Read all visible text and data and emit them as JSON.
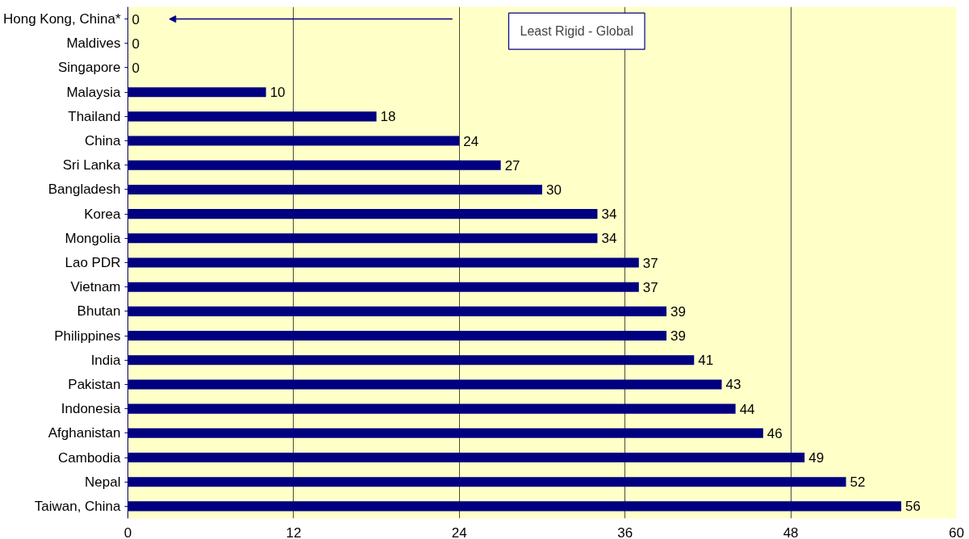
{
  "chart_data": {
    "type": "bar",
    "orientation": "horizontal",
    "categories": [
      "Hong Kong, China*",
      "Maldives",
      "Singapore",
      "Malaysia",
      "Thailand",
      "China",
      "Sri Lanka",
      "Bangladesh",
      "Korea",
      "Mongolia",
      "Lao PDR",
      "Vietnam",
      "Bhutan",
      "Philippines",
      "India",
      "Pakistan",
      "Indonesia",
      "Afghanistan",
      "Cambodia",
      "Nepal",
      "Taiwan, China"
    ],
    "values": [
      0,
      0,
      0,
      10,
      18,
      24,
      27,
      30,
      34,
      34,
      37,
      37,
      39,
      39,
      41,
      43,
      44,
      46,
      49,
      52,
      56
    ],
    "color": "#000080",
    "xlim": [
      0,
      60
    ],
    "xticks": [
      0,
      12,
      24,
      36,
      48,
      60
    ],
    "grid": "x",
    "data_labels": true,
    "annotations": [
      "Least Rigid - Global"
    ]
  }
}
